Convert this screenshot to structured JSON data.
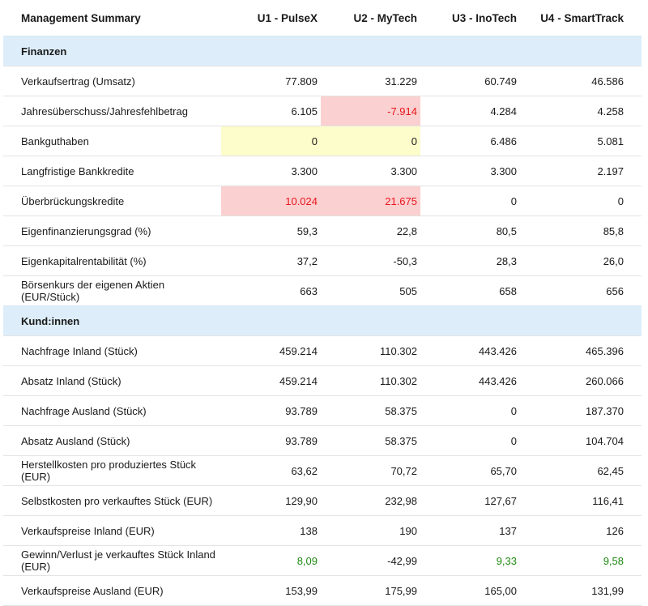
{
  "header": {
    "title": "Management Summary",
    "columns": [
      "U1 - PulseX",
      "U2 - MyTech",
      "U3 - InoTech",
      "U4 - SmartTrack"
    ]
  },
  "sections": [
    {
      "title": "Finanzen",
      "rows": [
        {
          "label": "Verkaufsertrag (Umsatz)",
          "values": [
            "77.809",
            "31.229",
            "60.749",
            "46.586"
          ]
        },
        {
          "label": "Jahresüberschuss/Jahresfehlbetrag",
          "values": [
            "6.105",
            "-7.914",
            "4.284",
            "4.258"
          ]
        },
        {
          "label": "Bankguthaben",
          "values": [
            "0",
            "0",
            "6.486",
            "5.081"
          ]
        },
        {
          "label": "Langfristige Bankkredite",
          "values": [
            "3.300",
            "3.300",
            "3.300",
            "2.197"
          ]
        },
        {
          "label": "Überbrückungskredite",
          "values": [
            "10.024",
            "21.675",
            "0",
            "0"
          ]
        },
        {
          "label": "Eigenfinanzierungsgrad (%)",
          "values": [
            "59,3",
            "22,8",
            "80,5",
            "85,8"
          ]
        },
        {
          "label": "Eigenkapitalrentabilität (%)",
          "values": [
            "37,2",
            "-50,3",
            "28,3",
            "26,0"
          ]
        },
        {
          "label": "Börsenkurs der eigenen Aktien (EUR/Stück)",
          "values": [
            "663",
            "505",
            "658",
            "656"
          ]
        }
      ]
    },
    {
      "title": "Kund:innen",
      "rows": [
        {
          "label": "Nachfrage Inland (Stück)",
          "values": [
            "459.214",
            "110.302",
            "443.426",
            "465.396"
          ]
        },
        {
          "label": "Absatz Inland (Stück)",
          "values": [
            "459.214",
            "110.302",
            "443.426",
            "260.066"
          ]
        },
        {
          "label": "Nachfrage Ausland (Stück)",
          "values": [
            "93.789",
            "58.375",
            "0",
            "187.370"
          ]
        },
        {
          "label": "Absatz Ausland (Stück)",
          "values": [
            "93.789",
            "58.375",
            "0",
            "104.704"
          ]
        },
        {
          "label": "Herstellkosten pro produziertes Stück (EUR)",
          "values": [
            "63,62",
            "70,72",
            "65,70",
            "62,45"
          ]
        },
        {
          "label": "Selbstkosten pro verkauftes Stück (EUR)",
          "values": [
            "129,90",
            "232,98",
            "127,67",
            "116,41"
          ]
        },
        {
          "label": "Verkaufspreise Inland (EUR)",
          "values": [
            "138",
            "190",
            "137",
            "126"
          ]
        },
        {
          "label": "Gewinn/Verlust je verkauftes Stück Inland (EUR)",
          "values": [
            "8,09",
            "-42,99",
            "9,33",
            "9,58"
          ]
        },
        {
          "label": "Verkaufspreise Ausland (EUR)",
          "values": [
            "153,99",
            "175,99",
            "165,00",
            "131,99"
          ]
        }
      ]
    }
  ],
  "colors": {
    "section_bg": "#ddeefa",
    "highlight_red": "#fbd0d0",
    "highlight_yellow": "#fdfccb",
    "negative_text": "#e8141c",
    "positive_text": "#1e8a12"
  }
}
